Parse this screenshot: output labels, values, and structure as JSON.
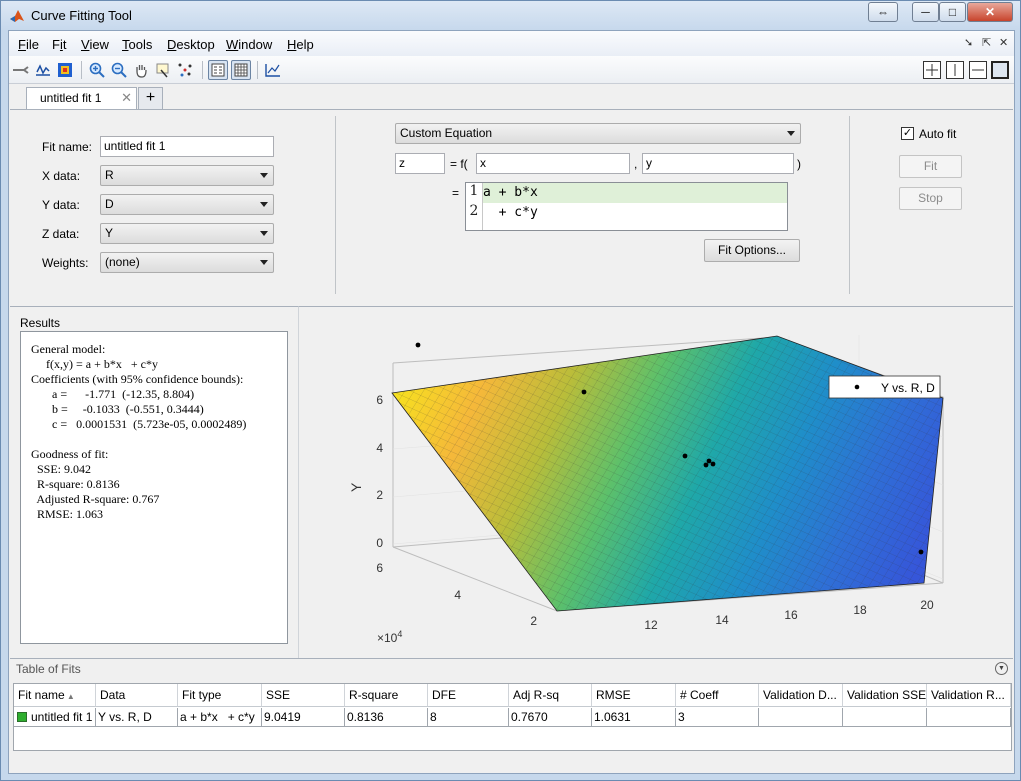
{
  "window": {
    "title": "Curve Fitting Tool"
  },
  "menu": [
    {
      "pre": "",
      "u": "F",
      "post": "ile"
    },
    {
      "pre": "F",
      "u": "i",
      "post": "t"
    },
    {
      "pre": "",
      "u": "V",
      "post": "iew"
    },
    {
      "pre": "",
      "u": "T",
      "post": "ools"
    },
    {
      "pre": "",
      "u": "D",
      "post": "esktop"
    },
    {
      "pre": "",
      "u": "W",
      "post": "indow"
    },
    {
      "pre": "",
      "u": "H",
      "post": "elp"
    }
  ],
  "tabs": [
    {
      "label": "untitled fit 1"
    }
  ],
  "fit": {
    "name_label": "Fit name:",
    "name_value": "untitled fit 1",
    "x_label": "X data:",
    "x_value": "R",
    "y_label": "Y data:",
    "y_value": "D",
    "z_label": "Z data:",
    "z_value": "Y",
    "weights_label": "Weights:",
    "weights_value": "(none)",
    "fit_type": "Custom Equation",
    "dep_var": "z",
    "eq_sign": "= f(",
    "indep_x": "x",
    "comma": ",",
    "indep_y": "y",
    "close_paren": ")",
    "eq_prefix": "=",
    "equation_lines": [
      {
        "num": "1",
        "text": "a + b*x"
      },
      {
        "num": "2",
        "text": "  + c*y"
      }
    ],
    "fit_options_label": "Fit Options...",
    "auto_fit_label": "Auto fit",
    "auto_fit_checked": true,
    "fit_button": "Fit",
    "stop_button": "Stop"
  },
  "results": {
    "title": "Results",
    "lines": [
      "General model:",
      "     f(x,y) = a + b*x   + c*y",
      "Coefficients (with 95% confidence bounds):",
      "       a =      -1.771  (-12.35, 8.804)",
      "       b =     -0.1033  (-0.551, 0.3444)",
      "       c =   0.0001531  (5.723e-05, 0.0002489)",
      "",
      "Goodness of fit:",
      "  SSE: 9.042",
      "  R-square: 0.8136",
      "  Adjusted R-square: 0.767",
      "  RMSE: 1.063"
    ]
  },
  "plot": {
    "legend": "Y vs. R, D",
    "z_label": "Y",
    "z_ticks": [
      "0",
      "2",
      "4",
      "6"
    ],
    "y_label": "D",
    "y_ticks": [
      "2",
      "4",
      "6"
    ],
    "y_exponent_base": "×10",
    "y_exponent_power": "4",
    "x_label": "R",
    "x_ticks": [
      "12",
      "14",
      "16",
      "18",
      "20"
    ],
    "surface_colors": [
      "#f6e11f",
      "#f5b83a",
      "#b9bd3a",
      "#5cc06b",
      "#1fa8a8",
      "#1f8ec9",
      "#2f6fd6",
      "#3656d9"
    ]
  },
  "table_of_fits": {
    "title": "Table of Fits",
    "columns": [
      "Fit name",
      "Data",
      "Fit type",
      "SSE",
      "R-square",
      "DFE",
      "Adj R-sq",
      "RMSE",
      "# Coeff",
      "Validation D...",
      "Validation SSE",
      "Validation R..."
    ],
    "rows": [
      [
        "untitled fit 1",
        "Y vs. R, D",
        "a + b*x   + c*y",
        "9.0419",
        "0.8136",
        "8",
        "0.7670",
        "1.0631",
        "3",
        "",
        "",
        ""
      ]
    ],
    "status_color": "#2fae2f"
  }
}
